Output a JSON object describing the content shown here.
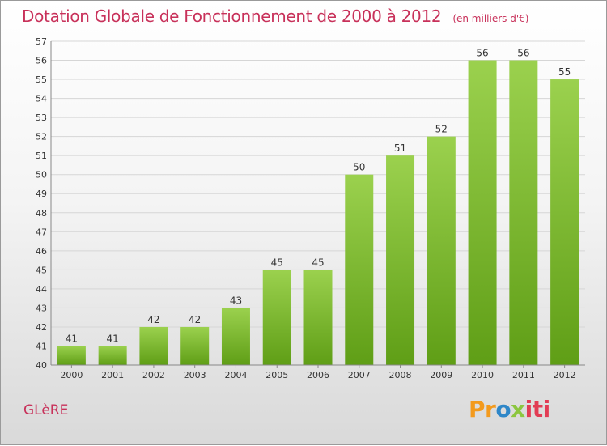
{
  "title": "Dotation Globale de Fonctionnement de 2000 à 2012",
  "unit_note": "(en milliers d'€)",
  "commune": "GLèRE",
  "logo": {
    "p1": "Pr",
    "p2": "o",
    "p3": "x",
    "p4": "iti"
  },
  "colors": {
    "title": "#c8315a",
    "bar_top": "#9bd14e",
    "bar_bottom": "#5f9e16",
    "grid": "#d6d6d6"
  },
  "chart_data": {
    "type": "bar",
    "categories": [
      "2000",
      "2001",
      "2002",
      "2003",
      "2004",
      "2005",
      "2006",
      "2007",
      "2008",
      "2009",
      "2010",
      "2011",
      "2012"
    ],
    "values": [
      41,
      41,
      42,
      42,
      43,
      45,
      45,
      50,
      51,
      52,
      56,
      56,
      55
    ],
    "title": "Dotation Globale de Fonctionnement de 2000 à 2012",
    "unit": "(en milliers d'€)",
    "ylim": [
      40,
      57
    ],
    "yticks": [
      40,
      41,
      42,
      43,
      44,
      45,
      46,
      47,
      48,
      49,
      50,
      51,
      52,
      53,
      54,
      55,
      56,
      57
    ],
    "grid": true,
    "legend": "none"
  }
}
